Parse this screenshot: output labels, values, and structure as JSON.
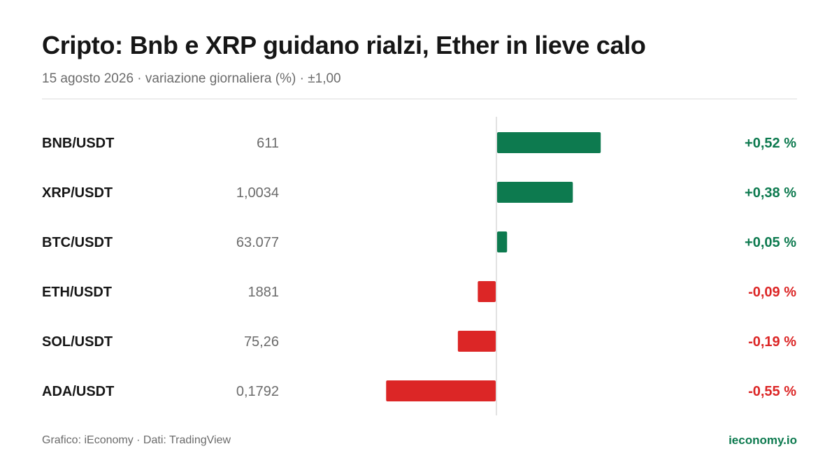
{
  "header": {
    "title": "Cripto: Bnb e XRP guidano rialzi, Ether in lieve calo",
    "subtitle": "15 agosto 2026 · variazione giornaliera (%) · ±1,00"
  },
  "footer": {
    "credit": "Grafico: iEconomy · Dati: TradingView",
    "site": "ieconomy.io"
  },
  "colors": {
    "positive": "#0d7a4f",
    "negative": "#dc2626",
    "axis": "#d9d9d9",
    "pair_text": "#161616",
    "price_text": "#6b6b6b"
  },
  "chart_data": {
    "type": "bar",
    "orientation": "horizontal",
    "categories": [
      "BNB/USDT",
      "XRP/USDT",
      "BTC/USDT",
      "ETH/USDT",
      "SOL/USDT",
      "ADA/USDT"
    ],
    "prices": [
      "611",
      "1,0034",
      "63.077",
      "1881",
      "75,26",
      "0,1792"
    ],
    "values": [
      0.52,
      0.38,
      0.05,
      -0.09,
      -0.19,
      -0.55
    ],
    "value_labels": [
      "+0,52 %",
      "+0,38 %",
      "+0,05 %",
      "-0,09 %",
      "-0,19 %",
      "-0,55 %"
    ],
    "xlim": [
      -1,
      1
    ],
    "grid": false,
    "title": "Cripto: Bnb e XRP guidano rialzi, Ether in lieve calo",
    "subtitle": "15 agosto 2026 · variazione giornaliera (%) · ±1,00"
  }
}
